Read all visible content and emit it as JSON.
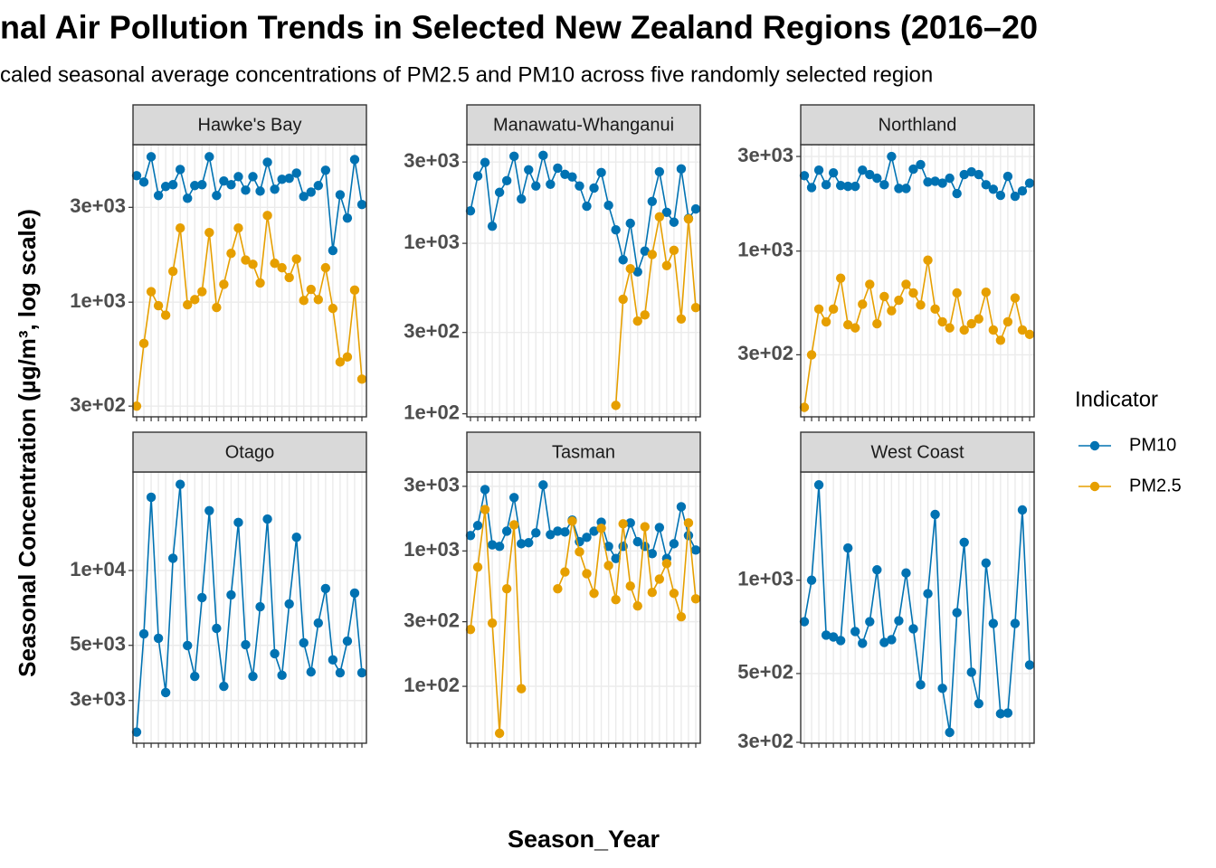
{
  "title": "nal Air Pollution Trends in Selected New Zealand Regions (2016–20",
  "subtitle": "caled seasonal average concentrations of PM2.5 and PM10 across five randomly selected region",
  "x_label": "Season_Year",
  "y_label": "Seasonal Concentration (µg/m³, log scale)",
  "legend_title": "Indicator",
  "chart_data": [
    {
      "type": "line",
      "title": "Hawke's Bay",
      "log_scale": true,
      "grid": true,
      "categories": [
        null,
        null,
        null,
        null,
        null,
        null,
        null,
        null,
        null,
        null,
        null,
        null,
        null,
        null,
        null,
        null,
        null,
        null,
        null,
        null,
        null,
        null,
        null,
        null,
        null,
        null,
        null,
        null,
        null,
        null,
        null,
        null
      ],
      "ylim": [
        265,
        6200
      ],
      "yticks": [
        {
          "value": 300,
          "label": "3e+02"
        },
        {
          "value": 1000,
          "label": "1e+03"
        },
        {
          "value": 3000,
          "label": "3e+03"
        }
      ],
      "series": [
        {
          "name": "PM10",
          "color": "#0072B2",
          "values": [
            4330,
            4020,
            5390,
            3440,
            3820,
            3900,
            4650,
            3330,
            3860,
            3900,
            5390,
            3440,
            4070,
            3900,
            4280,
            3660,
            4280,
            3620,
            5060,
            3700,
            4150,
            4200,
            4460,
            3400,
            3580,
            3860,
            4610,
            1820,
            3470,
            2650,
            5220,
            3100
          ]
        },
        {
          "name": "PM2.5",
          "color": "#E69F00",
          "values": [
            300,
            620,
            1130,
            960,
            860,
            1430,
            2360,
            970,
            1030,
            1130,
            2240,
            940,
            1230,
            1760,
            2360,
            1630,
            1550,
            1250,
            2730,
            1570,
            1490,
            1330,
            1650,
            1020,
            1160,
            1030,
            1490,
            930,
            500,
            530,
            1150,
            410
          ]
        }
      ]
    },
    {
      "type": "line",
      "title": "Manawatu-Whanganui",
      "log_scale": true,
      "grid": true,
      "categories": [
        null,
        null,
        null,
        null,
        null,
        null,
        null,
        null,
        null,
        null,
        null,
        null,
        null,
        null,
        null,
        null,
        null,
        null,
        null,
        null,
        null,
        null,
        null,
        null,
        null,
        null,
        null,
        null,
        null,
        null,
        null,
        null
      ],
      "ylim": [
        96,
        3790
      ],
      "yticks": [
        {
          "value": 100,
          "label": "1e+02"
        },
        {
          "value": 300,
          "label": "3e+02"
        },
        {
          "value": 1000,
          "label": "1e+03"
        },
        {
          "value": 3000,
          "label": "3e+03"
        }
      ],
      "series": [
        {
          "name": "PM10",
          "color": "#0072B2",
          "values": [
            1550,
            2480,
            2980,
            1260,
            1990,
            2330,
            3240,
            1820,
            2700,
            2170,
            3280,
            2220,
            2760,
            2540,
            2450,
            2170,
            1650,
            2110,
            2600,
            1670,
            1200,
            800,
            1310,
            680,
            900,
            1760,
            2630,
            1520,
            1330,
            2730,
            1400,
            1590
          ]
        },
        {
          "name": "PM2.5",
          "color": "#E69F00",
          "values": [
            null,
            null,
            null,
            null,
            null,
            null,
            null,
            null,
            null,
            null,
            null,
            null,
            null,
            null,
            null,
            null,
            null,
            null,
            null,
            null,
            112,
            470,
            710,
            350,
            380,
            860,
            1430,
            740,
            910,
            360,
            1390,
            420
          ]
        }
      ]
    },
    {
      "type": "line",
      "title": "Northland",
      "log_scale": true,
      "grid": true,
      "categories": [
        null,
        null,
        null,
        null,
        null,
        null,
        null,
        null,
        null,
        null,
        null,
        null,
        null,
        null,
        null,
        null,
        null,
        null,
        null,
        null,
        null,
        null,
        null,
        null,
        null,
        null,
        null,
        null,
        null,
        null,
        null,
        null
      ],
      "ylim": [
        146,
        3440
      ],
      "yticks": [
        {
          "value": 300,
          "label": "3e+02"
        },
        {
          "value": 1000,
          "label": "1e+03"
        },
        {
          "value": 3000,
          "label": "3e+03"
        }
      ],
      "series": [
        {
          "name": "PM10",
          "color": "#0072B2",
          "values": [
            2400,
            2090,
            2560,
            2160,
            2480,
            2140,
            2120,
            2120,
            2560,
            2430,
            2330,
            2160,
            3000,
            2070,
            2070,
            2590,
            2730,
            2230,
            2250,
            2200,
            2330,
            1950,
            2430,
            2510,
            2430,
            2160,
            2050,
            1910,
            2380,
            1890,
            2010,
            2200
          ]
        },
        {
          "name": "PM2.5",
          "color": "#E69F00",
          "values": [
            163,
            300,
            510,
            440,
            510,
            730,
            425,
            410,
            540,
            680,
            430,
            590,
            500,
            565,
            680,
            615,
            535,
            900,
            510,
            440,
            410,
            615,
            400,
            430,
            455,
            620,
            400,
            355,
            440,
            580,
            400,
            380
          ]
        }
      ]
    },
    {
      "type": "line",
      "title": "Otago",
      "log_scale": true,
      "grid": true,
      "categories": [
        null,
        null,
        null,
        null,
        null,
        null,
        null,
        null,
        null,
        null,
        null,
        null,
        null,
        null,
        null,
        null,
        null,
        null,
        null,
        null,
        null,
        null,
        null,
        null,
        null,
        null,
        null,
        null,
        null,
        null,
        null,
        null
      ],
      "ylim": [
        2020,
        24900
      ],
      "yticks": [
        {
          "value": 3000,
          "label": "3e+03"
        },
        {
          "value": 5000,
          "label": "5e+03"
        },
        {
          "value": 10000,
          "label": "1e+04"
        }
      ],
      "series": [
        {
          "name": "PM10",
          "color": "#0072B2",
          "values": [
            2240,
            5560,
            19700,
            5340,
            3230,
            11200,
            22200,
            4990,
            3750,
            7780,
            17400,
            5850,
            3420,
            7980,
            15600,
            5030,
            3750,
            7150,
            16100,
            4630,
            3790,
            7340,
            13600,
            5120,
            3910,
            6150,
            8460,
            4370,
            3880,
            5200,
            8110,
            3880
          ]
        }
      ]
    },
    {
      "type": "line",
      "title": "Tasman",
      "log_scale": true,
      "grid": true,
      "categories": [
        null,
        null,
        null,
        null,
        null,
        null,
        null,
        null,
        null,
        null,
        null,
        null,
        null,
        null,
        null,
        null,
        null,
        null,
        null,
        null,
        null,
        null,
        null,
        null,
        null,
        null,
        null,
        null,
        null,
        null,
        null,
        null
      ],
      "ylim": [
        38,
        3830
      ],
      "yticks": [
        {
          "value": 100,
          "label": "1e+02"
        },
        {
          "value": 300,
          "label": "3e+02"
        },
        {
          "value": 1000,
          "label": "1e+03"
        },
        {
          "value": 3000,
          "label": "3e+03"
        }
      ],
      "series": [
        {
          "name": "PM10",
          "color": "#0072B2",
          "values": [
            1300,
            1540,
            2840,
            1110,
            1080,
            1400,
            2480,
            1130,
            1150,
            1360,
            3070,
            1320,
            1400,
            1380,
            1690,
            1170,
            1260,
            1400,
            1630,
            1080,
            880,
            1080,
            1610,
            1170,
            1080,
            955,
            1490,
            880,
            1130,
            2120,
            1300,
            1015
          ]
        },
        {
          "name": "PM2.5",
          "color": "#E69F00",
          "values": [
            263,
            760,
            2020,
            293,
            45,
            525,
            1560,
            96,
            null,
            null,
            null,
            null,
            525,
            700,
            1660,
            985,
            680,
            486,
            1470,
            780,
            437,
            1585,
            550,
            392,
            1510,
            494,
            620,
            807,
            486,
            326,
            1610,
            443
          ]
        }
      ]
    },
    {
      "type": "line",
      "title": "West Coast",
      "log_scale": true,
      "grid": true,
      "categories": [
        null,
        null,
        null,
        null,
        null,
        null,
        null,
        null,
        null,
        null,
        null,
        null,
        null,
        null,
        null,
        null,
        null,
        null,
        null,
        null,
        null,
        null,
        null,
        null,
        null,
        null,
        null,
        null,
        null,
        null,
        null,
        null
      ],
      "ylim": [
        298,
        2234
      ],
      "yticks": [
        {
          "value": 300,
          "label": "3e+02"
        },
        {
          "value": 500,
          "label": "5e+02"
        },
        {
          "value": 1000,
          "label": "1e+03"
        }
      ],
      "series": [
        {
          "name": "PM10",
          "color": "#0072B2",
          "values": [
            735,
            1000,
            2030,
            665,
            656,
            639,
            1270,
            683,
            626,
            735,
            1080,
            630,
            643,
            740,
            1055,
            697,
            460,
            905,
            1630,
            448,
            323,
            786,
            1325,
            505,
            400,
            1136,
            725,
            371,
            373,
            725,
            1685,
            533
          ]
        }
      ]
    }
  ]
}
